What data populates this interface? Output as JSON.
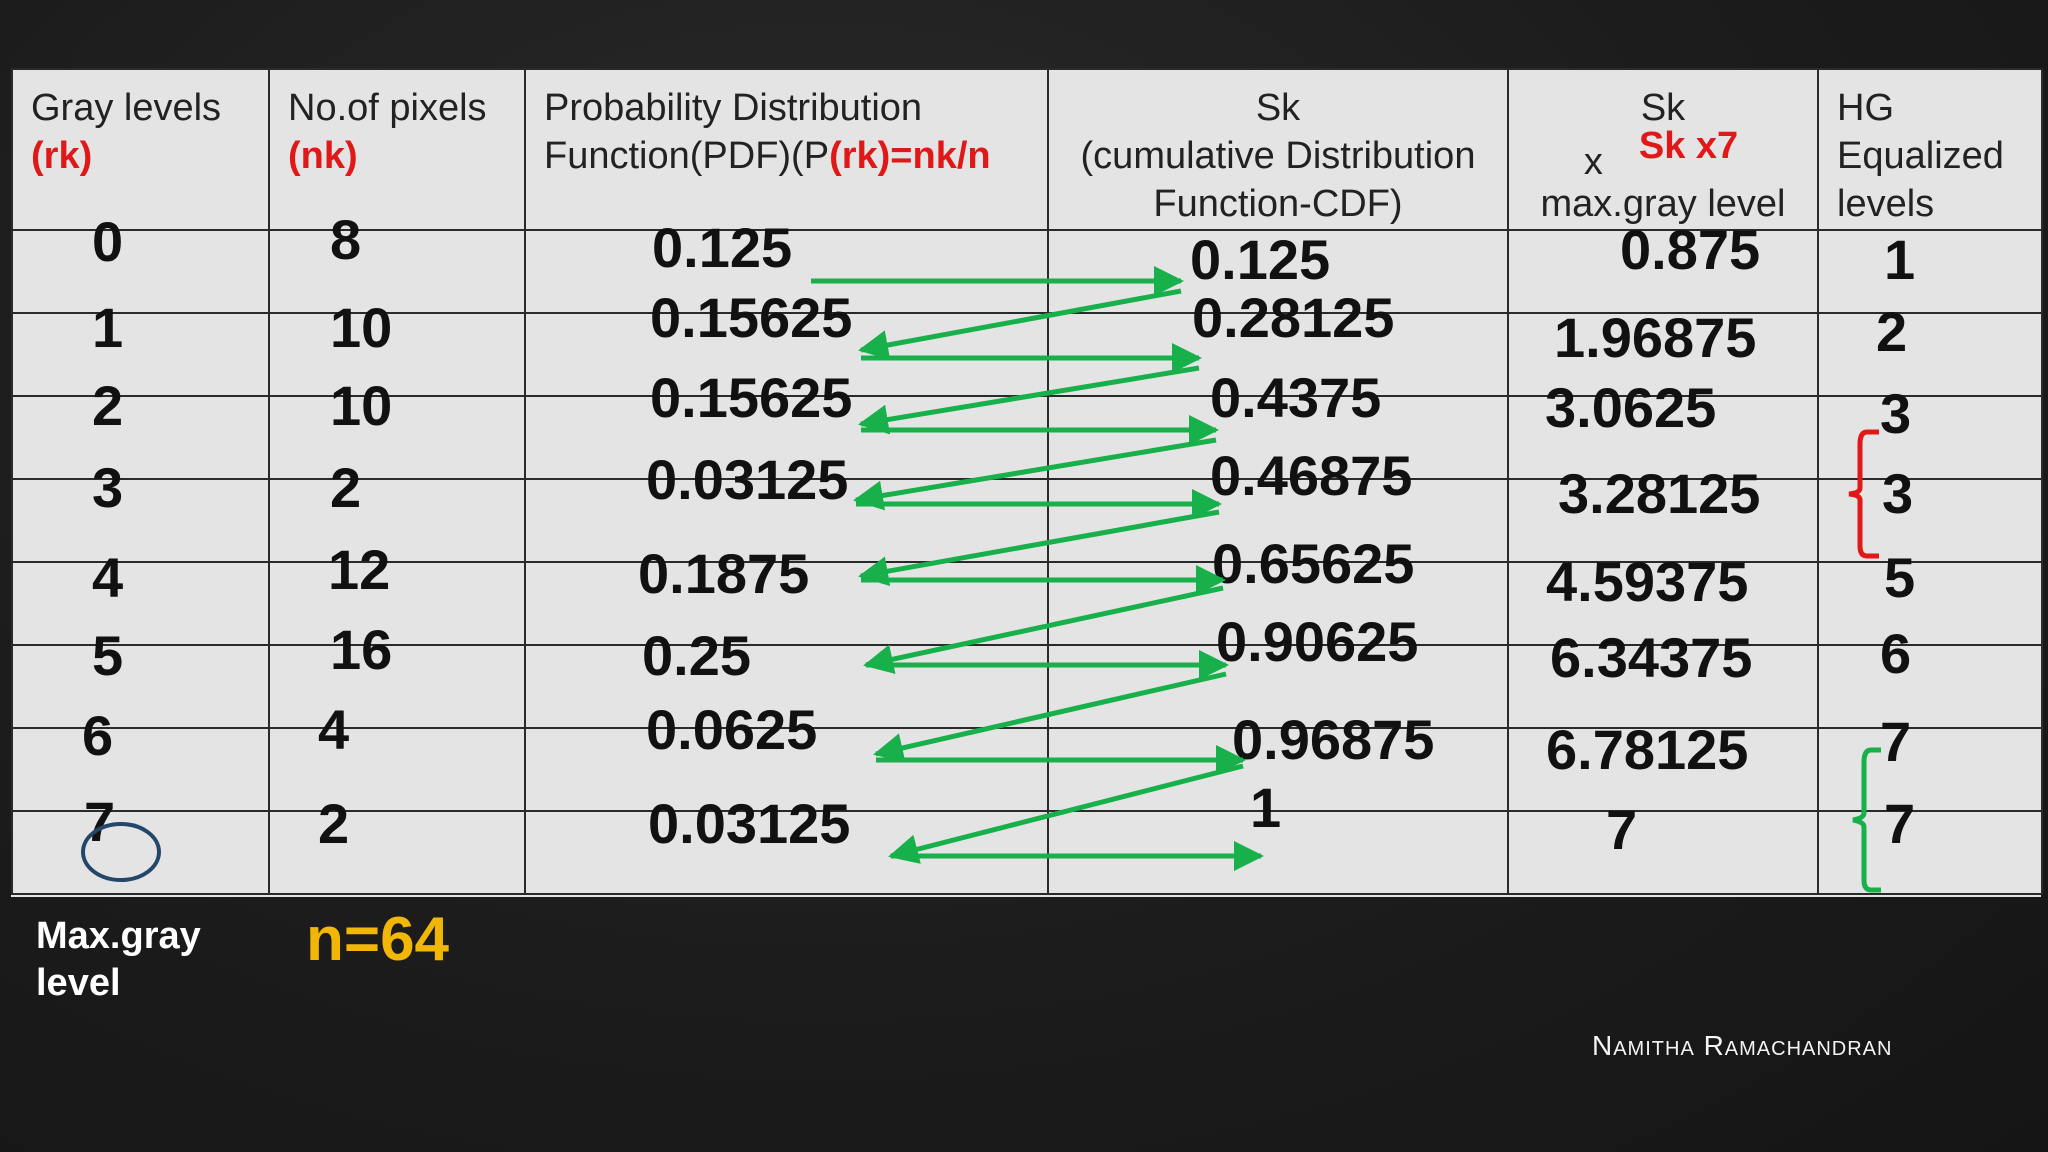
{
  "table": {
    "headers": {
      "col1": {
        "line1": "Gray levels",
        "line2": "(rk)"
      },
      "col2": {
        "line1": "No.of pixels",
        "line2": "(nk)"
      },
      "col3": {
        "line1": "Probability Distribution",
        "line2a": "Function(PDF)(P",
        "line2b": "(rk)=nk/n"
      },
      "col4": {
        "line1": "Sk",
        "line2": "(cumulative Distribution",
        "line3": "Function-CDF)"
      },
      "col5": {
        "line1": "Sk",
        "line2a": "x",
        "line2b": "Sk x7",
        "line3": "max.gray level"
      },
      "col6": {
        "line1": "HG",
        "line2": "Equalized",
        "line3": "levels"
      }
    },
    "rows": [
      {
        "rk": "0",
        "nk": "8",
        "pdf": "0.125",
        "cdf": "0.125",
        "sk7": "0.875",
        "hg": "1"
      },
      {
        "rk": "1",
        "nk": "10",
        "pdf": "0.15625",
        "cdf": "0.28125",
        "sk7": "1.96875",
        "hg": "2"
      },
      {
        "rk": "2",
        "nk": "10",
        "pdf": "0.15625",
        "cdf": "0.4375",
        "sk7": "3.0625",
        "hg": "3"
      },
      {
        "rk": "3",
        "nk": "2",
        "pdf": "0.03125",
        "cdf": "0.46875",
        "sk7": "3.28125",
        "hg": "3"
      },
      {
        "rk": "4",
        "nk": "12",
        "pdf": "0.1875",
        "cdf": "0.65625",
        "sk7": "4.59375",
        "hg": "5"
      },
      {
        "rk": "5",
        "nk": "16",
        "pdf": "0.25",
        "cdf": "0.90625",
        "sk7": "6.34375",
        "hg": "6"
      },
      {
        "rk": "6",
        "nk": "4",
        "pdf": "0.0625",
        "cdf": "0.96875",
        "sk7": "6.78125",
        "hg": "7"
      },
      {
        "rk": "7",
        "nk": "2",
        "pdf": "0.03125",
        "cdf": "1",
        "sk7": "7",
        "hg": "7"
      }
    ]
  },
  "footer": {
    "max_label_line1": "Max.gray",
    "max_label_line2": "level",
    "total": "n=64"
  },
  "credit": {
    "first": "Namitha",
    "last": "Ramachandran"
  },
  "colors": {
    "arrow": "#18b04a",
    "highlight_red": "#e01818",
    "total_yellow": "#f2b705",
    "circle_blue": "#23466b"
  }
}
